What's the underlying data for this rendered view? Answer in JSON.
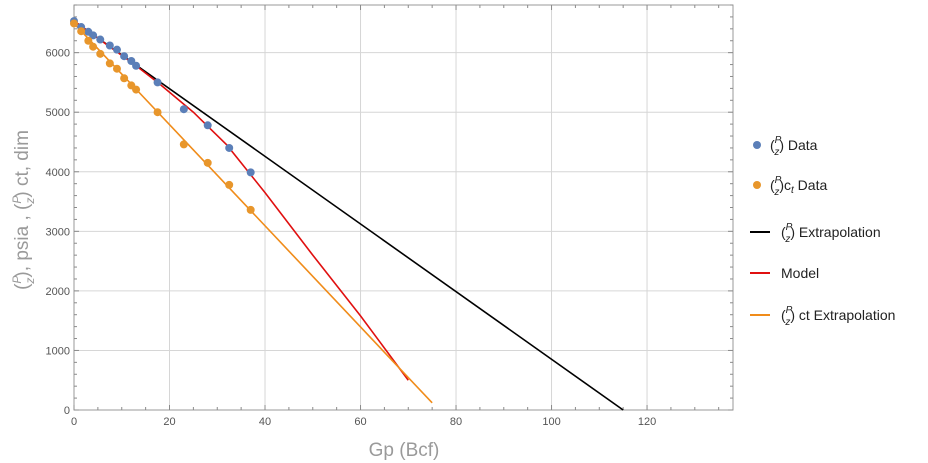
{
  "chart_data": {
    "type": "scatter",
    "title": "",
    "xlabel": "Gp (Bcf)",
    "ylabel": {
      "part1": "(",
      "p": "P",
      "z": "z",
      "part2": "), psia , (",
      "part3": ") ct, dim"
    },
    "xlim": [
      0,
      138
    ],
    "ylim": [
      0,
      6800
    ],
    "x_ticks": [
      0,
      20,
      40,
      60,
      80,
      100,
      120
    ],
    "y_ticks": [
      0,
      1000,
      2000,
      3000,
      4000,
      5000,
      6000
    ],
    "grid": true,
    "legend_position": "right",
    "series": [
      {
        "name": "(P/z) Data",
        "kind": "points",
        "color": "#5b7fb8",
        "x": [
          0,
          1.5,
          3,
          4,
          5.5,
          7.5,
          9,
          10.5,
          12,
          13,
          17.5,
          23,
          28,
          32.5,
          37
        ],
        "y": [
          6530,
          6430,
          6350,
          6290,
          6220,
          6120,
          6050,
          5940,
          5860,
          5780,
          5500,
          5050,
          4780,
          4400,
          3990
        ]
      },
      {
        "name": "(P/z)ct Data",
        "kind": "points",
        "color": "#e8962b",
        "x": [
          0,
          1.5,
          3,
          4,
          5.5,
          7.5,
          9,
          10.5,
          12,
          13,
          17.5,
          23,
          28,
          32.5,
          37
        ],
        "y": [
          6490,
          6360,
          6200,
          6100,
          5980,
          5820,
          5730,
          5570,
          5450,
          5380,
          5000,
          4460,
          4150,
          3780,
          3360
        ]
      },
      {
        "name": "(P/z) Extrapolation",
        "kind": "line",
        "color": "#000000",
        "x": [
          0,
          115
        ],
        "y": [
          6530,
          0
        ]
      },
      {
        "name": "Model",
        "kind": "line",
        "color": "#e01010",
        "x": [
          0,
          13,
          18,
          25,
          32,
          40,
          50,
          60,
          70
        ],
        "y": [
          6530,
          5780,
          5470,
          5000,
          4450,
          3650,
          2600,
          1580,
          500
        ]
      },
      {
        "name": "(P/z) ct Extrapolation",
        "kind": "line",
        "color": "#f08c1a",
        "x": [
          0,
          75
        ],
        "y": [
          6490,
          120
        ]
      }
    ]
  },
  "legend": [
    {
      "prefix": "(",
      "p": "P",
      "z": "z",
      "suffix": ") Data",
      "subscript": ""
    },
    {
      "prefix": "(",
      "p": "P",
      "z": "z",
      "suffix": ")c",
      "subscript": "t",
      "after": " Data"
    },
    {
      "prefix": "(",
      "p": "P",
      "z": "z",
      "suffix": ") Extrapolation",
      "subscript": ""
    },
    {
      "label": "Model"
    },
    {
      "prefix": "(",
      "p": "P",
      "z": "z",
      "suffix": ") ct Extrapolation",
      "subscript": ""
    }
  ]
}
